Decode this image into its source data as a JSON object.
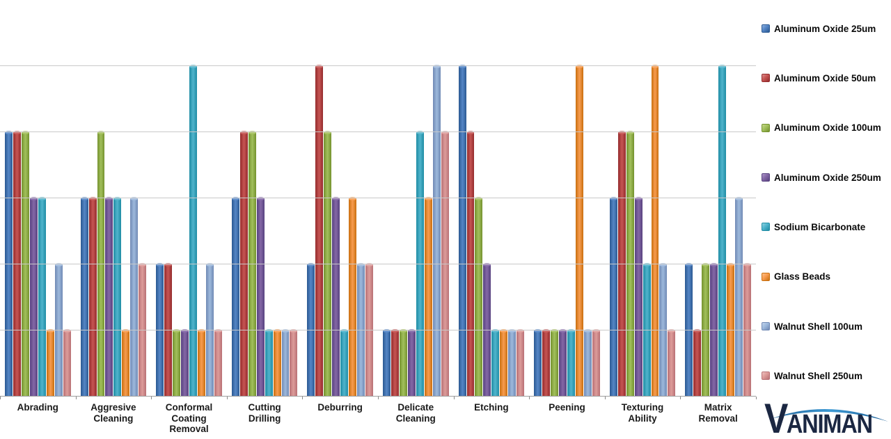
{
  "colors": {
    "grid": "#c9c9c9",
    "axis": "#9e9e9e",
    "tick": "#8a8a8a",
    "label_text": "#1a1a1a",
    "legend_text": "#0a0a0a",
    "logo_navy": "#1b2742",
    "logo_blue": "#2c80be"
  },
  "chart_data": {
    "type": "bar",
    "title": "",
    "xlabel": "",
    "ylabel": "",
    "ylim": [
      0,
      5
    ],
    "ytick_interval": 1,
    "grid": true,
    "legend_position": "right",
    "categories": [
      "Abrading",
      "Aggresive Cleaning",
      "Conformal Coating Removal",
      "Cutting Drilling",
      "Deburring",
      "Delicate Cleaning",
      "Etching",
      "Peening",
      "Texturing Ability",
      "Matrix Removal"
    ],
    "series": [
      {
        "name": "Aluminum Oxide 25um",
        "values": [
          4,
          3,
          2,
          3,
          2,
          1,
          5,
          1,
          3,
          2
        ],
        "color": {
          "dark": "#2b5992",
          "light": "#5586c6",
          "cap": "#8fb2e0"
        }
      },
      {
        "name": "Aluminum Oxide 50um",
        "values": [
          4,
          3,
          2,
          4,
          5,
          1,
          4,
          1,
          4,
          1
        ],
        "color": {
          "dark": "#942b2c",
          "light": "#c65553",
          "cap": "#dd9090"
        }
      },
      {
        "name": "Aluminum Oxide 100um",
        "values": [
          4,
          4,
          1,
          4,
          4,
          1,
          3,
          1,
          4,
          2
        ],
        "color": {
          "dark": "#74922e",
          "light": "#a2c05c",
          "cap": "#c6d88e"
        }
      },
      {
        "name": "Aluminum Oxide 250um",
        "values": [
          3,
          3,
          1,
          3,
          3,
          1,
          2,
          1,
          3,
          2
        ],
        "color": {
          "dark": "#57417f",
          "light": "#8468a6",
          "cap": "#ae97c9"
        }
      },
      {
        "name": "Sodium Bicarbonate",
        "values": [
          3,
          3,
          5,
          1,
          1,
          4,
          1,
          1,
          2,
          5
        ],
        "color": {
          "dark": "#1f8ca4",
          "light": "#50b4cc",
          "cap": "#90d2e0"
        }
      },
      {
        "name": "Glass Beads",
        "values": [
          1,
          1,
          1,
          1,
          3,
          3,
          1,
          5,
          5,
          2
        ],
        "color": {
          "dark": "#c96f0e",
          "light": "#f89c50",
          "cap": "#fcc08a"
        }
      },
      {
        "name": "Walnut Shell 100um",
        "values": [
          2,
          3,
          2,
          1,
          2,
          5,
          1,
          1,
          2,
          3
        ],
        "color": {
          "dark": "#7089b4",
          "light": "#9db9dc",
          "cap": "#c2d4eb"
        }
      },
      {
        "name": "Walnut Shell 250um",
        "values": [
          1,
          2,
          1,
          1,
          2,
          4,
          1,
          1,
          1,
          2
        ],
        "color": {
          "dark": "#b87075",
          "light": "#dd9c9a",
          "cap": "#eec2c1"
        }
      }
    ]
  },
  "logo": {
    "initial": "V",
    "rest": "ANIMAN",
    "brand": "VANIMAN"
  }
}
